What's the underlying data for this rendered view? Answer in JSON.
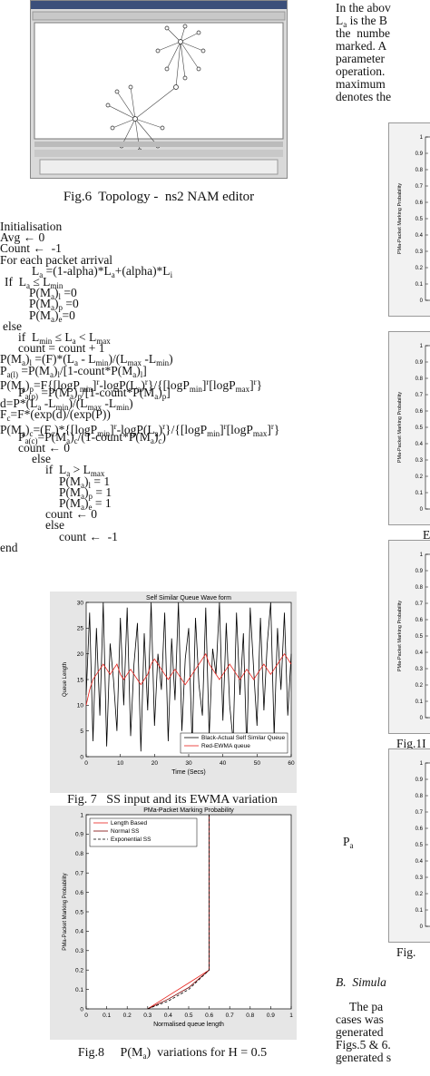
{
  "left": {
    "fig6": {
      "caption": "Fig.6  Topology -  ns2 NAM editor"
    },
    "algorithm": [
      [
        "Initialisation"
      ],
      [
        "Avg ← 0"
      ],
      [
        "Count ←  -1"
      ],
      [
        "For each packet arrival"
      ],
      [
        "L",
        {
          "sub": "a"
        },
        " =(1-alpha)*L",
        {
          "sub": "a"
        },
        "+(alpha)*L",
        {
          "sub": "i"
        }
      ],
      [
        "If  L",
        {
          "sub": "a"
        },
        " ≤ L",
        {
          "sub": "min"
        }
      ],
      [
        "P(M",
        {
          "sub": "a"
        },
        ")",
        {
          "sub": "l"
        },
        " =0"
      ],
      [
        "P(M",
        {
          "sub": "a"
        },
        ")",
        {
          "sub": "p"
        },
        " =0"
      ],
      [
        "P(M",
        {
          "sub": "a"
        },
        ")",
        {
          "sub": "e"
        },
        "=0"
      ],
      [
        "else"
      ],
      [
        "if  L",
        {
          "sub": "min"
        },
        " ≤ L",
        {
          "sub": "a"
        },
        " < L",
        {
          "sub": "max"
        }
      ],
      [
        "count = count + 1"
      ],
      [
        "P(M",
        {
          "sub": "a"
        },
        ")",
        {
          "sub": "l"
        },
        " =(F)*(L",
        {
          "sub": "a"
        },
        " - L",
        {
          "sub": "min"
        },
        ")/(L",
        {
          "sub": "max"
        },
        " -L",
        {
          "sub": "min"
        },
        ")"
      ],
      [
        "P",
        {
          "sub": "a(l)"
        },
        " =P(M",
        {
          "sub": "a"
        },
        ")",
        {
          "sub": "l"
        },
        "/[1-count*P(M",
        {
          "sub": "a"
        },
        ")",
        {
          "sub": "l"
        },
        "]"
      ],
      [
        "P(M",
        {
          "sub": "a"
        },
        ")",
        {
          "sub": "p"
        },
        "=F{[logP",
        {
          "sub": "min"
        },
        "]",
        {
          "sup": "r"
        },
        "-logP(L",
        {
          "sub": "a"
        },
        ")",
        {
          "sup": "r"
        },
        "}/{[logP",
        {
          "sub": "min"
        },
        "]",
        {
          "sup": "r"
        },
        "[logP",
        {
          "sub": "max"
        },
        "]",
        {
          "sup": "r"
        },
        "}"
      ],
      [
        "P",
        {
          "sub": "a(p)"
        },
        " =P(M",
        {
          "sub": "a"
        },
        ")",
        {
          "sub": "p"
        },
        "/[1-count*P(M",
        {
          "sub": "a"
        },
        ")",
        {
          "sub": "p"
        },
        "]"
      ],
      [
        "d=P*(L",
        {
          "sub": "a"
        },
        " -L",
        {
          "sub": "min"
        },
        ")/(L",
        {
          "sub": "max"
        },
        " -L",
        {
          "sub": "min"
        },
        ")"
      ],
      [
        "F",
        {
          "sub": "c"
        },
        "=F*(exp(d)/(exp(P))"
      ],
      [
        "P(M",
        {
          "sub": "a"
        },
        ")",
        {
          "sub": "c"
        },
        "=(F",
        {
          "sub": "c"
        },
        ")*{[logP",
        {
          "sub": "min"
        },
        "]",
        {
          "sup": "r"
        },
        "-logP(L",
        {
          "sub": "a"
        },
        ")",
        {
          "sup": "r"
        },
        "}/{[logP",
        {
          "sub": "min"
        },
        "]",
        {
          "sup": "r"
        },
        "[logP",
        {
          "sub": "max"
        },
        "]",
        {
          "sup": "r"
        },
        "}"
      ],
      [
        "P",
        {
          "sub": "a(c)"
        },
        "=P(M",
        {
          "sub": "a"
        },
        ")",
        {
          "sub": "c"
        },
        "/(1-count*P(M",
        {
          "sub": "a"
        },
        ")",
        {
          "sub": "c"
        },
        ")"
      ],
      [
        "count ← 0"
      ],
      [
        "else"
      ],
      [
        "if  L",
        {
          "sub": "a"
        },
        " > L",
        {
          "sub": "max"
        }
      ],
      [
        "P(M",
        {
          "sub": "a"
        },
        ")",
        {
          "sub": "l"
        },
        " = 1"
      ],
      [
        "P(M",
        {
          "sub": "a"
        },
        ")",
        {
          "sub": "p"
        },
        " = 1"
      ],
      [
        "P(M",
        {
          "sub": "a"
        },
        ")",
        {
          "sub": "e"
        },
        " = 1"
      ],
      [
        "count ← 0"
      ],
      [
        "else"
      ],
      [
        "count ←  -1"
      ],
      [
        "end"
      ]
    ],
    "fig7": {
      "type": "line",
      "title": "Self Similar Queue Wave form",
      "xlabel": "Time (Secs)",
      "ylabel": "Queue Length",
      "x": [
        0,
        1,
        2,
        3,
        4,
        5,
        6,
        7,
        8,
        9,
        10,
        11,
        12,
        13,
        14,
        15,
        16,
        17,
        18,
        19,
        20,
        21,
        22,
        23,
        24,
        25,
        26,
        27,
        28,
        29,
        30,
        31,
        32,
        33,
        34,
        35,
        36,
        37,
        38,
        39,
        40,
        41,
        42,
        43,
        44,
        45,
        46,
        47,
        48,
        49,
        50,
        51,
        52,
        53,
        54,
        55,
        56,
        57,
        58,
        59,
        60
      ],
      "series": [
        {
          "name": "Black-Actual Self Similar Queue",
          "color": "#000000",
          "values": [
            12,
            28,
            3,
            25,
            8,
            30,
            2,
            22,
            15,
            5,
            27,
            10,
            29,
            4,
            18,
            26,
            1,
            24,
            9,
            30,
            6,
            20,
            13,
            28,
            3,
            23,
            11,
            30,
            5,
            19,
            25,
            2,
            27,
            14,
            8,
            29,
            4,
            21,
            16,
            30,
            7,
            26,
            10,
            3,
            28,
            12,
            24,
            1,
            29,
            17,
            6,
            27,
            9,
            22,
            30,
            4,
            25,
            13,
            28,
            8,
            20
          ]
        },
        {
          "name": "Red-EWMA queue",
          "color": "#e8201a",
          "values": [
            10,
            13,
            15,
            16,
            17,
            18,
            17,
            16,
            17,
            18,
            16,
            15,
            16,
            17,
            16,
            15,
            14,
            15,
            16,
            18,
            19,
            18,
            17,
            16,
            15,
            16,
            17,
            16,
            15,
            14,
            15,
            16,
            17,
            18,
            19,
            20,
            18,
            17,
            16,
            15,
            16,
            17,
            18,
            17,
            16,
            15,
            16,
            17,
            16,
            15,
            16,
            17,
            18,
            17,
            16,
            17,
            18,
            19,
            20,
            19,
            18
          ]
        }
      ],
      "xlim": [
        0,
        60
      ],
      "xticks": [
        0,
        10,
        20,
        30,
        40,
        50,
        60
      ],
      "ylim": [
        0,
        30
      ],
      "yticks": [
        0,
        5,
        10,
        15,
        20,
        25,
        30
      ],
      "legend": "lower right",
      "caption": "Fig. 7   SS input and its EWMA variation"
    },
    "fig8": {
      "type": "line",
      "title": "PMa-Packet Marking Probability",
      "xlabel": "Normalised queue length",
      "ylabel": "PMa-Packet Marking Probability",
      "x": [
        0.3,
        0.4,
        0.5,
        0.6,
        0.6
      ],
      "series": [
        {
          "name": "Length Based",
          "color": "#e8201a",
          "values": [
            0,
            0.067,
            0.133,
            0.2,
            1
          ]
        },
        {
          "name": "Normal SS",
          "color": "#7a0000",
          "values": [
            0,
            0.05,
            0.11,
            0.2,
            1
          ]
        },
        {
          "name": "Exponential SS",
          "color": "#000000",
          "dash": true,
          "values": [
            0,
            0.04,
            0.1,
            0.2,
            1
          ]
        }
      ],
      "xlim": [
        0,
        1
      ],
      "xticks": [
        0,
        0.1,
        0.2,
        0.3,
        0.4,
        0.5,
        0.6,
        0.7,
        0.8,
        0.9,
        1
      ],
      "ylim": [
        0,
        1
      ],
      "yticks": [
        0,
        0.1,
        0.2,
        0.3,
        0.4,
        0.5,
        0.6,
        0.7,
        0.8,
        0.9,
        1
      ],
      "legend": "upper left",
      "caption": [
        "Fig.8     P(M",
        {
          "sub": "a"
        },
        ")  variations for H = 0.5"
      ]
    }
  },
  "right": {
    "paragraph": [
      [
        "In the abov"
      ],
      [
        "L",
        {
          "sub": "a"
        },
        " is the B"
      ],
      [
        "the  numbe"
      ],
      [
        "marked. A"
      ],
      [
        "parameter"
      ],
      [
        "operation."
      ],
      [
        "maximum"
      ],
      [
        "denotes the"
      ]
    ],
    "figures": [
      {
        "ylabel": "PMa-Packet Marking Probability",
        "yticks": [
          0,
          0.1,
          0.2,
          0.3,
          0.4,
          0.5,
          0.6,
          0.7,
          0.8,
          0.9,
          1
        ]
      },
      {
        "ylabel": "PMa-Packet Marking Probability",
        "yticks": [
          0,
          0.1,
          0.2,
          0.3,
          0.4,
          0.5,
          0.6,
          0.7,
          0.8,
          0.9,
          1
        ],
        "caption": "E"
      },
      {
        "ylabel": "PMa-Packet Marking Probability",
        "yticks": [
          0,
          0.1,
          0.2,
          0.3,
          0.4,
          0.5,
          0.6,
          0.7,
          0.8,
          0.9,
          1
        ],
        "caption": "Fig.1I"
      },
      {
        "ylabel": [
          "P",
          {
            "sub": "a"
          }
        ],
        "yticks": [
          0,
          0.1,
          0.2,
          0.3,
          0.4,
          0.5,
          0.6,
          0.7,
          0.8,
          0.9,
          1
        ],
        "caption": "Fig."
      }
    ],
    "section": "B.  Simula",
    "paragraph2": [
      [
        "The pa"
      ],
      [
        "cases was"
      ],
      [
        "generated"
      ],
      [
        "Figs.5 & 6."
      ],
      [
        "generated s"
      ]
    ]
  }
}
